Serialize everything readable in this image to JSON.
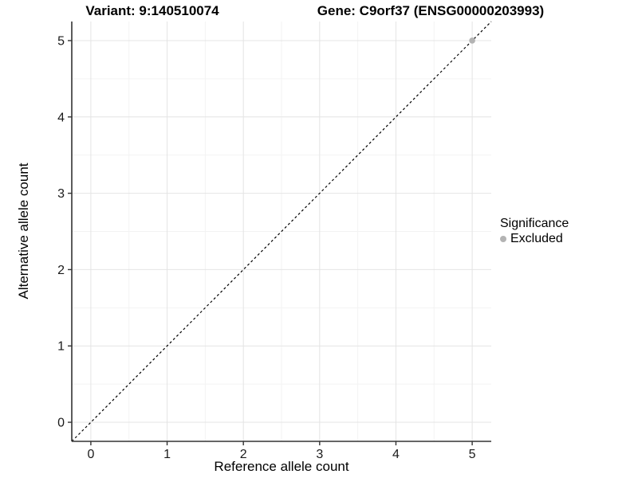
{
  "titles": {
    "variant": "Variant: 9:140510074",
    "gene": "Gene: C9orf37 (ENSG00000203993)"
  },
  "legend": {
    "title": "Significance",
    "items": [
      {
        "label": "Excluded",
        "color": "#b3b3b3"
      }
    ],
    "position": "right"
  },
  "colors": {
    "background": "#ffffff",
    "grid_major": "#e4e4e4",
    "grid_minor": "#f3f3f3",
    "axis_line": "#333333",
    "tick_mark": "#333333",
    "tick_label": "#1a1a1a",
    "reference_line": "#000000",
    "excluded_point": "#b3b3b3"
  },
  "chart_data": {
    "type": "scatter",
    "title": "",
    "xlabel": "Reference allele count",
    "ylabel": "Alternative allele count",
    "xlim": [
      -0.25,
      5.25
    ],
    "ylim": [
      -0.25,
      5.25
    ],
    "xticks": [
      0,
      1,
      2,
      3,
      4,
      5
    ],
    "yticks": [
      0,
      1,
      2,
      3,
      4,
      5
    ],
    "minor_step": 0.5,
    "grid": "major+minor",
    "legend_position": "right",
    "series": [
      {
        "name": "Excluded",
        "color": "#b3b3b3",
        "points": [
          {
            "x": 5,
            "y": 5
          }
        ]
      }
    ],
    "reference_line": {
      "description": "identity line y = x",
      "style": "dashed",
      "x1": -0.25,
      "y1": -0.25,
      "x2": 5.25,
      "y2": 5.25
    }
  }
}
